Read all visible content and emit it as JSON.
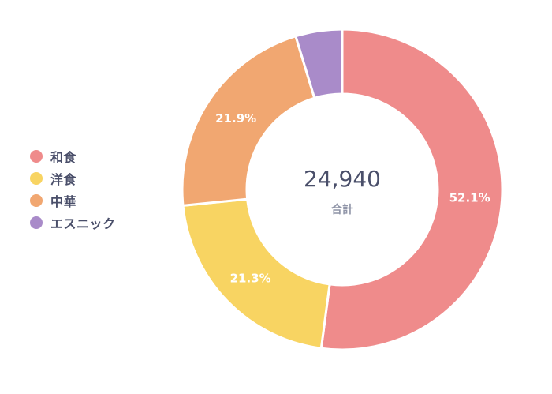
{
  "chart_data": {
    "type": "pie",
    "variant": "donut",
    "categories": [
      "和食",
      "洋食",
      "中華",
      "エスニック"
    ],
    "values": [
      52.1,
      21.3,
      21.9,
      4.7
    ],
    "value_labels": [
      "52.1%",
      "21.3%",
      "21.9%",
      ""
    ],
    "colors": [
      "#ef8b8b",
      "#f8d462",
      "#f1a771",
      "#a98bc9"
    ],
    "legend_position": "left",
    "center": {
      "total": "24,940",
      "caption": "合計"
    }
  }
}
